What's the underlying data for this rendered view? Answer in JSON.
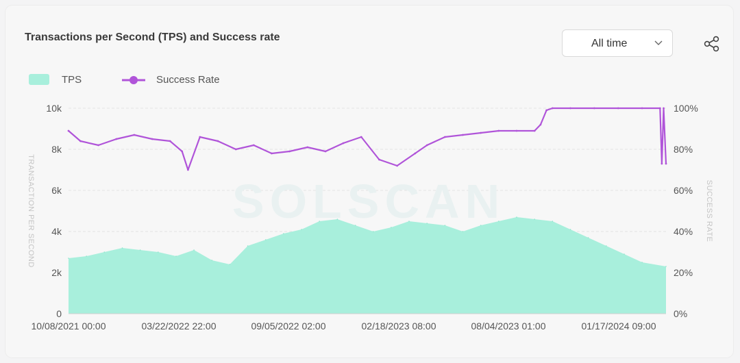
{
  "header": {
    "title": "Transactions per Second (TPS) and Success rate",
    "range_select": {
      "value": "All time"
    }
  },
  "legend": {
    "tps_label": "TPS",
    "success_label": "Success Rate"
  },
  "watermark": "SOLSCAN",
  "colors": {
    "tps_fill": "#a8efdc",
    "success_line": "#b054d9",
    "grid": "#e3e3e3"
  },
  "icons": {
    "share": "share-icon",
    "dropdown": "chevron-down-icon"
  },
  "chart_data": {
    "type": "area",
    "x_tick_labels": [
      "10/08/2021 00:00",
      "03/22/2022 22:00",
      "09/05/2022 02:00",
      "02/18/2023 08:00",
      "08/04/2023 01:00",
      "01/17/2024 09:00"
    ],
    "y_left": {
      "label": "TRANSACTION PER SECOND",
      "range": [
        0,
        10000
      ],
      "ticks": [
        "0",
        "2k",
        "4k",
        "6k",
        "8k",
        "10k"
      ]
    },
    "y_right": {
      "label": "SUCCESS RATE",
      "range": [
        0,
        100
      ],
      "ticks": [
        "0%",
        "20%",
        "40%",
        "60%",
        "80%",
        "100%"
      ]
    },
    "grid": "horizontal",
    "legend_position": "top-left",
    "series": [
      {
        "name": "TPS",
        "type": "area",
        "axis": "left",
        "x_fraction": [
          0,
          0.03,
          0.06,
          0.09,
          0.12,
          0.15,
          0.18,
          0.21,
          0.24,
          0.27,
          0.3,
          0.33,
          0.36,
          0.39,
          0.42,
          0.45,
          0.48,
          0.51,
          0.54,
          0.57,
          0.6,
          0.63,
          0.66,
          0.69,
          0.72,
          0.75,
          0.78,
          0.81,
          0.84,
          0.87,
          0.9,
          0.93,
          0.96,
          1.0
        ],
        "values": [
          2700,
          2800,
          3000,
          3200,
          3100,
          3000,
          2800,
          3100,
          2600,
          2400,
          3300,
          3600,
          3900,
          4100,
          4500,
          4600,
          4300,
          4000,
          4200,
          4500,
          4400,
          4300,
          4000,
          4300,
          4500,
          4700,
          4600,
          4500,
          4100,
          3700,
          3300,
          2900,
          2500,
          2300
        ]
      },
      {
        "name": "Success Rate",
        "type": "line",
        "axis": "right",
        "x_fraction": [
          0,
          0.02,
          0.05,
          0.08,
          0.11,
          0.14,
          0.17,
          0.19,
          0.2,
          0.22,
          0.25,
          0.28,
          0.31,
          0.34,
          0.37,
          0.4,
          0.43,
          0.46,
          0.49,
          0.52,
          0.55,
          0.58,
          0.6,
          0.63,
          0.66,
          0.69,
          0.72,
          0.75,
          0.78,
          0.79,
          0.8,
          0.81,
          0.84,
          0.88,
          0.92,
          0.96,
          0.99,
          0.993,
          0.996,
          1.0
        ],
        "values": [
          89,
          84,
          82,
          85,
          87,
          85,
          84,
          79,
          70,
          86,
          84,
          80,
          82,
          78,
          79,
          81,
          79,
          83,
          86,
          75,
          72,
          78,
          82,
          86,
          87,
          88,
          89,
          89,
          89,
          92,
          99,
          100,
          100,
          100,
          100,
          100,
          100,
          73,
          100,
          73
        ]
      }
    ]
  }
}
